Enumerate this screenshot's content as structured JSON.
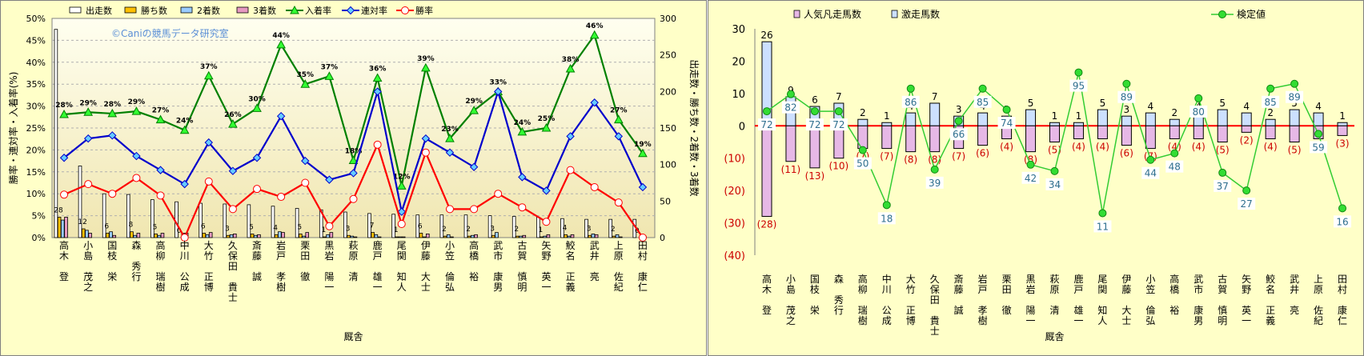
{
  "chart_data": [
    {
      "type": "bar+line",
      "watermark": "©Caniの競馬データ研究室",
      "xlabel": "厩舎",
      "ylabel_left": "勝率・連対率・入着率(%)",
      "ylabel_right": "出走数・勝ち数・2着数・3着数",
      "ylim_left": [
        0,
        50
      ],
      "ylim_right": [
        0,
        300
      ],
      "y_ticks_left": [
        "0%",
        "5%",
        "10%",
        "15%",
        "20%",
        "25%",
        "30%",
        "35%",
        "40%",
        "45%",
        "50%"
      ],
      "y_ticks_right": [
        "0",
        "50",
        "100",
        "150",
        "200",
        "250",
        "300"
      ],
      "categories": [
        "高木 登",
        "小島 茂之",
        "国枝 栄",
        "森 秀行",
        "高柳 瑞樹",
        "中川 公成",
        "大竹 正博",
        "久保田 貴士",
        "斎藤 誠",
        "岩戸 孝樹",
        "栗田 徹",
        "黒岩 陽一",
        "萩原 清",
        "鹿戸 雄一",
        "尾関 知人",
        "伊藤 大士",
        "小笠 倫弘",
        "高橋 裕",
        "武市 康男",
        "古賀 慎明",
        "矢野 英一",
        "鮫名 正義",
        "武井 亮",
        "上原 佐紀",
        "田村 康仁"
      ],
      "legend": [
        "出走数",
        "勝ち数",
        "2着数",
        "3着数",
        "入着率",
        "連対率",
        "勝率"
      ],
      "bar_series": [
        {
          "name": "出走数",
          "color": "#FFFFFF",
          "values": [
            285,
            98,
            60,
            59,
            52,
            49,
            47,
            46,
            45,
            43,
            40,
            38,
            35,
            33,
            32,
            31,
            31,
            31,
            30,
            29,
            28,
            26,
            25,
            25,
            25
          ]
        },
        {
          "name": "勝ち数",
          "color": "#FFC000",
          "values": [
            28,
            12,
            6,
            8,
            5,
            0,
            6,
            3,
            5,
            4,
            5,
            1,
            3,
            7,
            1,
            6,
            2,
            2,
            3,
            2,
            1,
            4,
            3,
            2,
            0
          ]
        },
        {
          "name": "2着数",
          "color": "#99CCFF",
          "values": [
            24,
            10,
            8,
            3,
            3,
            6,
            4,
            4,
            3,
            8,
            2,
            4,
            2,
            4,
            1,
            1,
            4,
            3,
            7,
            2,
            2,
            2,
            5,
            4,
            3
          ]
        },
        {
          "name": "3着数",
          "color": "#E699C0",
          "values": [
            28,
            6,
            3,
            6,
            6,
            6,
            7,
            5,
            4,
            7,
            7,
            7,
            1,
            1,
            1,
            5,
            1,
            4,
            0,
            3,
            4,
            4,
            4,
            1,
            2
          ]
        }
      ],
      "bar_labels": [
        "28",
        "12",
        "6",
        "8",
        "5",
        "0",
        "6",
        "3",
        "5",
        "4",
        "5",
        "1",
        "3",
        "7",
        "1",
        "6",
        "2",
        "2",
        "3",
        "2",
        "1",
        "4",
        "3",
        "2",
        "0"
      ],
      "line_series": [
        {
          "name": "入着率",
          "color": "#008000",
          "marker": "triangle",
          "values": [
            28.1,
            28.6,
            28.3,
            28.8,
            26.9,
            24.5,
            36.9,
            25.9,
            29.5,
            44.0,
            35.0,
            36.8,
            17.6,
            36.4,
            11.8,
            38.7,
            22.6,
            29.0,
            33.3,
            24.1,
            25.0,
            38.5,
            46.2,
            26.9,
            19.2
          ],
          "labels": [
            "28%",
            "29%",
            "28%",
            "29%",
            "27%",
            "24%",
            "37%",
            "26%",
            "30%",
            "44%",
            "35%",
            "37%",
            "18%",
            "36%",
            "12%",
            "39%",
            "23%",
            "29%",
            "33%",
            "24%",
            "25%",
            "38%",
            "46%",
            "27%",
            "19%"
          ]
        },
        {
          "name": "連対率",
          "color": "#0000CC",
          "marker": "diamond",
          "values": [
            18.2,
            22.6,
            23.3,
            18.6,
            15.4,
            12.2,
            21.7,
            15.2,
            18.2,
            27.7,
            17.5,
            13.2,
            14.7,
            33.3,
            5.9,
            22.6,
            19.4,
            16.1,
            33.3,
            13.8,
            10.7,
            23.1,
            30.8,
            23.1,
            11.5
          ]
        },
        {
          "name": "勝率",
          "color": "#FF0000",
          "marker": "circle",
          "values": [
            9.8,
            12.2,
            10.0,
            13.6,
            9.6,
            0.0,
            12.8,
            6.5,
            11.1,
            9.3,
            12.5,
            2.6,
            8.8,
            21.2,
            3.1,
            19.4,
            6.5,
            6.5,
            10.0,
            6.9,
            3.6,
            15.4,
            11.5,
            8.0,
            0.0
          ]
        }
      ]
    },
    {
      "type": "bar+line",
      "xlabel": "厩舎",
      "ylim": [
        -40,
        30
      ],
      "y_ticks": [
        "30",
        "20",
        "10",
        "0",
        "(10)",
        "(20)",
        "(30)",
        "(40)"
      ],
      "categories": [
        "高木 登",
        "小島 茂之",
        "国枝 栄",
        "森 秀行",
        "高柳 瑞樹",
        "中川 公成",
        "大竹 正博",
        "久保田 貴士",
        "斎藤 誠",
        "岩戸 孝樹",
        "栗田 徹",
        "黒岩 陽一",
        "萩原 清",
        "鹿戸 雄一",
        "尾関 知人",
        "伊藤 大士",
        "小笠 倫弘",
        "高橋 裕",
        "武市 康男",
        "古賀 慎明",
        "矢野 英一",
        "鮫名 正義",
        "武井 亮",
        "上原 佐紀",
        "田村 康仁"
      ],
      "legend": [
        "人気凡走馬数",
        "激走馬数",
        "検定値"
      ],
      "bar_series": [
        {
          "name": "人気凡走馬数",
          "color": "#E6B8E6",
          "values": [
            -28,
            -11,
            -13,
            -10,
            -7,
            -7,
            -8,
            -8,
            -7,
            -6,
            -4,
            -8,
            -5,
            -4,
            -4,
            -6,
            -7,
            -4,
            -4,
            -5,
            -2,
            -4,
            -5,
            -4,
            -3
          ],
          "labels": [
            "(28)",
            "(11)",
            "(13)",
            "(10)",
            "(7)",
            "(7)",
            "(8)",
            "(8)",
            "(7)",
            "(6)",
            "(4)",
            "(8)",
            "(5)",
            "(4)",
            "(4)",
            "(6)",
            "(7)",
            "(4)",
            "(4)",
            "(5)",
            "(2)",
            "(4)",
            "(5)",
            "(4)",
            "(3)"
          ]
        },
        {
          "name": "激走馬数",
          "color": "#CCE0FF",
          "values": [
            26,
            9,
            6,
            7,
            2,
            1,
            4,
            7,
            3,
            4,
            3,
            5,
            1,
            1,
            5,
            3,
            4,
            2,
            4,
            5,
            4,
            2,
            5,
            4,
            1
          ],
          "labels": [
            "26",
            "9",
            "6",
            "7",
            "2",
            "1",
            "4",
            "7",
            "3",
            "4",
            "3",
            "5",
            "1",
            "1",
            "5",
            "3",
            "4",
            "2",
            "4",
            "5",
            "4",
            "2",
            "5",
            "4",
            "1"
          ]
        }
      ],
      "line_series": [
        {
          "name": "検定値",
          "color": "#33CC33",
          "marker": "circle",
          "values": [
            4.5,
            9.8,
            4.5,
            4.5,
            -7.5,
            -24.5,
            11.5,
            -13.5,
            1.5,
            11.5,
            5.0,
            -12.0,
            -14.0,
            16.5,
            -27.0,
            13.0,
            -10.5,
            -8.5,
            8.5,
            -14.5,
            -20.0,
            11.5,
            13.0,
            -2.5,
            -25.5
          ],
          "labels": [
            "72",
            "82",
            "72",
            "72",
            "50",
            "18",
            "86",
            "39",
            "66",
            "85",
            "74",
            "42",
            "34",
            "95",
            "11",
            "89",
            "44",
            "48",
            "80",
            "37",
            "27",
            "85",
            "89",
            "59",
            "16"
          ]
        }
      ]
    }
  ]
}
